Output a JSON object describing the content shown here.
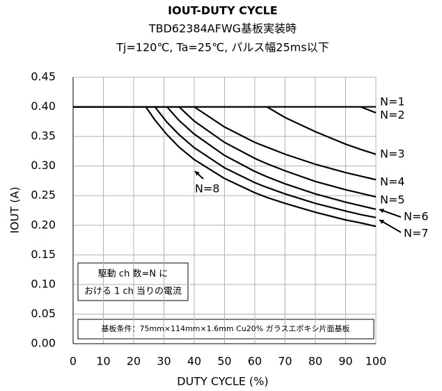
{
  "chart_data": {
    "type": "line",
    "title": "IOUT-DUTY CYCLE",
    "subtitle": [
      "TBD62384AFWG基板実装時",
      "Tj=120℃, Ta=25℃, パルス幅25ms以下"
    ],
    "x_label": "DUTY CYCLE (%)",
    "y_label": "IOUT (A)",
    "x": [
      0,
      10,
      20,
      24,
      27,
      31,
      35,
      40,
      50,
      60,
      64,
      70,
      80,
      90,
      95,
      100
    ],
    "series": [
      {
        "name": "N=1",
        "color": "#000000",
        "values": [
          0.4,
          0.4,
          0.4,
          0.4,
          0.4,
          0.4,
          0.4,
          0.4,
          0.4,
          0.4,
          0.4,
          0.4,
          0.4,
          0.4,
          0.4,
          0.4
        ]
      },
      {
        "name": "N=2",
        "color": "#000000",
        "values": [
          0.4,
          0.4,
          0.4,
          0.4,
          0.4,
          0.4,
          0.4,
          0.4,
          0.4,
          0.4,
          0.4,
          0.4,
          0.4,
          0.4,
          0.4,
          0.39
        ]
      },
      {
        "name": "N=3",
        "color": "#000000",
        "values": [
          0.4,
          0.4,
          0.4,
          0.4,
          0.4,
          0.4,
          0.4,
          0.4,
          0.4,
          0.4,
          0.4,
          0.382,
          0.358,
          0.337,
          0.328,
          0.32
        ]
      },
      {
        "name": "N=4",
        "color": "#000000",
        "values": [
          0.4,
          0.4,
          0.4,
          0.4,
          0.4,
          0.4,
          0.4,
          0.4,
          0.366,
          0.34,
          0.332,
          0.32,
          0.303,
          0.289,
          0.283,
          0.277
        ]
      },
      {
        "name": "N=5",
        "color": "#000000",
        "values": [
          0.4,
          0.4,
          0.4,
          0.4,
          0.4,
          0.4,
          0.4,
          0.376,
          0.34,
          0.313,
          0.304,
          0.292,
          0.274,
          0.26,
          0.254,
          0.248
        ]
      },
      {
        "name": "N=6",
        "color": "#000000",
        "values": [
          0.4,
          0.4,
          0.4,
          0.4,
          0.4,
          0.4,
          0.377,
          0.354,
          0.318,
          0.291,
          0.282,
          0.27,
          0.253,
          0.239,
          0.233,
          0.227
        ]
      },
      {
        "name": "N=7",
        "color": "#000000",
        "values": [
          0.4,
          0.4,
          0.4,
          0.4,
          0.4,
          0.374,
          0.353,
          0.331,
          0.297,
          0.272,
          0.264,
          0.253,
          0.237,
          0.224,
          0.218,
          0.213
        ]
      },
      {
        "name": "N=8",
        "color": "#000000",
        "values": [
          0.4,
          0.4,
          0.4,
          0.4,
          0.378,
          0.353,
          0.332,
          0.311,
          0.279,
          0.255,
          0.247,
          0.237,
          0.222,
          0.209,
          0.204,
          0.198
        ]
      }
    ],
    "xlim": [
      0,
      100
    ],
    "xticks": [
      0,
      10,
      20,
      30,
      40,
      50,
      60,
      70,
      80,
      90,
      100
    ],
    "ylim": [
      0,
      0.45
    ],
    "yticks": [
      {
        "value": 0,
        "label": "0.00"
      },
      {
        "value": 0.05,
        "label": "0.05"
      },
      {
        "value": 0.1,
        "label": "0.10"
      },
      {
        "value": 0.15,
        "label": "0.15"
      },
      {
        "value": 0.2,
        "label": "0.20"
      },
      {
        "value": 0.25,
        "label": "0.25"
      },
      {
        "value": 0.3,
        "label": "0.30"
      },
      {
        "value": 0.35,
        "label": "0.35"
      },
      {
        "value": 0.4,
        "label": "0.40"
      },
      {
        "value": 0.45,
        "label": "0.45"
      }
    ],
    "grid": true,
    "annotations": [
      "駆動 ch 数=N に",
      "おける 1 ch 当りの電流",
      "基板条件：75mm×114mm×1.6mm Cu20%  ガラスエポキシ片面基板"
    ]
  }
}
